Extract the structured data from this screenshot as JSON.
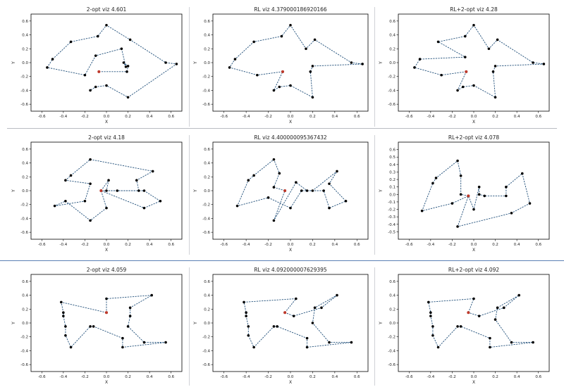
{
  "chart_data": [
    {
      "type": "line",
      "title": "2-opt viz 4.601",
      "xlabel": "X",
      "ylabel": "Y",
      "xlim": [
        -0.7,
        0.7
      ],
      "ylim": [
        -0.7,
        0.7
      ],
      "xticks": [
        -0.6,
        -0.4,
        -0.2,
        0.0,
        0.2,
        0.4,
        0.6
      ],
      "yticks": [
        0.6,
        0.4,
        0.2,
        0.0,
        -0.2,
        -0.4,
        -0.6
      ],
      "start": [
        -0.07,
        -0.13
      ],
      "points": [
        [
          -0.07,
          -0.13
        ],
        [
          0.19,
          -0.13
        ],
        [
          0.2,
          -0.05
        ],
        [
          0.16,
          0.0
        ],
        [
          0.18,
          -0.06
        ],
        [
          0.14,
          0.2
        ],
        [
          -0.1,
          0.1
        ],
        [
          -0.2,
          -0.18
        ],
        [
          -0.55,
          -0.07
        ],
        [
          -0.5,
          0.05
        ],
        [
          -0.33,
          0.3
        ],
        [
          -0.08,
          0.38
        ],
        [
          0.0,
          0.54
        ],
        [
          0.22,
          0.33
        ],
        [
          0.55,
          0.0
        ],
        [
          0.65,
          -0.02
        ],
        [
          0.2,
          -0.5
        ],
        [
          0.0,
          -0.33
        ],
        [
          -0.1,
          -0.35
        ],
        [
          -0.15,
          -0.4
        ]
      ]
    },
    {
      "type": "line",
      "title": "RL viz 4.379000186920166",
      "xlabel": "X",
      "ylabel": "Y",
      "xlim": [
        -0.7,
        0.7
      ],
      "ylim": [
        -0.7,
        0.7
      ],
      "xticks": [
        -0.6,
        -0.4,
        -0.2,
        0.0,
        0.2,
        0.4,
        0.6
      ],
      "yticks": [
        0.6,
        0.4,
        0.2,
        0.0,
        -0.2,
        -0.4,
        -0.6
      ],
      "start": [
        -0.07,
        -0.13
      ],
      "points": [
        [
          -0.07,
          -0.13
        ],
        [
          -0.3,
          -0.18
        ],
        [
          -0.55,
          -0.07
        ],
        [
          -0.5,
          0.05
        ],
        [
          -0.33,
          0.3
        ],
        [
          -0.08,
          0.38
        ],
        [
          0.0,
          0.54
        ],
        [
          0.14,
          0.2
        ],
        [
          0.22,
          0.33
        ],
        [
          0.55,
          0.0
        ],
        [
          0.65,
          -0.02
        ],
        [
          0.2,
          -0.05
        ],
        [
          0.18,
          -0.13
        ],
        [
          0.2,
          -0.5
        ],
        [
          0.0,
          -0.33
        ],
        [
          -0.1,
          -0.35
        ],
        [
          -0.15,
          -0.4
        ],
        [
          -0.07,
          -0.13
        ]
      ]
    },
    {
      "type": "line",
      "title": "RL+2-opt viz 4.28",
      "xlabel": "X",
      "ylabel": "Y",
      "xlim": [
        -0.7,
        0.7
      ],
      "ylim": [
        -0.7,
        0.7
      ],
      "xticks": [
        -0.6,
        -0.4,
        -0.2,
        0.0,
        0.2,
        0.4,
        0.6
      ],
      "yticks": [
        0.6,
        0.4,
        0.2,
        0.0,
        -0.2,
        -0.4,
        -0.6
      ],
      "start": [
        -0.07,
        -0.13
      ],
      "points": [
        [
          -0.07,
          -0.13
        ],
        [
          -0.3,
          -0.18
        ],
        [
          -0.55,
          -0.07
        ],
        [
          -0.5,
          0.05
        ],
        [
          -0.08,
          0.08
        ],
        [
          -0.33,
          0.3
        ],
        [
          -0.08,
          0.38
        ],
        [
          0.0,
          0.54
        ],
        [
          0.14,
          0.2
        ],
        [
          0.22,
          0.33
        ],
        [
          0.55,
          0.0
        ],
        [
          0.65,
          -0.02
        ],
        [
          0.2,
          -0.05
        ],
        [
          0.18,
          -0.13
        ],
        [
          0.2,
          -0.5
        ],
        [
          0.0,
          -0.33
        ],
        [
          -0.1,
          -0.35
        ],
        [
          -0.15,
          -0.4
        ],
        [
          -0.07,
          -0.13
        ]
      ]
    },
    {
      "type": "line",
      "title": "2-opt viz 4.18",
      "xlabel": "X",
      "ylabel": "Y",
      "xlim": [
        -0.7,
        0.7
      ],
      "ylim": [
        -0.7,
        0.7
      ],
      "xticks": [
        -0.6,
        -0.4,
        -0.2,
        0.0,
        0.2,
        0.4,
        0.6
      ],
      "yticks": [
        0.6,
        0.4,
        0.2,
        0.0,
        -0.2,
        -0.4,
        -0.6
      ],
      "start": [
        -0.05,
        0.0
      ],
      "points": [
        [
          -0.05,
          0.0
        ],
        [
          0.02,
          0.15
        ],
        [
          0.0,
          0.0
        ],
        [
          0.1,
          0.0
        ],
        [
          0.3,
          0.0
        ],
        [
          0.28,
          0.15
        ],
        [
          0.43,
          0.28
        ],
        [
          -0.15,
          0.45
        ],
        [
          -0.33,
          0.22
        ],
        [
          -0.38,
          0.15
        ],
        [
          -0.15,
          0.1
        ],
        [
          -0.2,
          -0.15
        ],
        [
          -0.48,
          -0.22
        ],
        [
          -0.38,
          -0.15
        ],
        [
          -0.15,
          -0.43
        ],
        [
          0.0,
          -0.25
        ],
        [
          -0.05,
          0.0
        ],
        [
          0.35,
          -0.25
        ],
        [
          0.5,
          -0.15
        ],
        [
          0.35,
          0.0
        ],
        [
          -0.05,
          0.0
        ]
      ]
    },
    {
      "type": "line",
      "title": "RL viz 4.400000095367432",
      "xlabel": "X",
      "ylabel": "Y",
      "xlim": [
        -0.7,
        0.7
      ],
      "ylim": [
        -0.7,
        0.7
      ],
      "xticks": [
        -0.6,
        -0.4,
        -0.2,
        0.0,
        0.2,
        0.4,
        0.6
      ],
      "yticks": [
        0.6,
        0.4,
        0.2,
        0.0,
        -0.2,
        -0.4,
        -0.6
      ],
      "start": [
        -0.05,
        0.0
      ],
      "points": [
        [
          -0.05,
          0.0
        ],
        [
          -0.15,
          0.05
        ],
        [
          -0.1,
          0.25
        ],
        [
          -0.15,
          0.45
        ],
        [
          -0.33,
          0.22
        ],
        [
          -0.38,
          0.15
        ],
        [
          -0.48,
          -0.22
        ],
        [
          -0.2,
          -0.1
        ],
        [
          0.0,
          -0.25
        ],
        [
          0.1,
          0.0
        ],
        [
          0.2,
          0.0
        ],
        [
          0.42,
          0.28
        ],
        [
          0.35,
          0.1
        ],
        [
          0.5,
          -0.15
        ],
        [
          0.35,
          -0.25
        ],
        [
          0.3,
          0.0
        ],
        [
          0.15,
          0.0
        ],
        [
          0.05,
          0.12
        ],
        [
          -0.15,
          -0.43
        ],
        [
          -0.05,
          0.0
        ]
      ]
    },
    {
      "type": "line",
      "title": "RL+2-opt viz 4.078",
      "xlabel": "X",
      "ylabel": "Y",
      "xlim": [
        -0.7,
        0.7
      ],
      "ylim": [
        -0.6,
        0.7
      ],
      "xticks": [
        -0.6,
        -0.4,
        -0.2,
        0.0,
        0.2,
        0.4,
        0.6
      ],
      "yticks": [
        0.6,
        0.5,
        0.4,
        0.3,
        0.2,
        0.1,
        0.0,
        -0.1,
        -0.2,
        -0.3,
        -0.4,
        -0.5
      ],
      "start": [
        -0.05,
        -0.02
      ],
      "points": [
        [
          -0.05,
          -0.02
        ],
        [
          -0.12,
          0.0
        ],
        [
          -0.12,
          0.25
        ],
        [
          -0.15,
          0.45
        ],
        [
          -0.35,
          0.22
        ],
        [
          -0.38,
          0.15
        ],
        [
          -0.48,
          -0.22
        ],
        [
          -0.2,
          -0.12
        ],
        [
          -0.05,
          -0.02
        ],
        [
          0.0,
          -0.2
        ],
        [
          0.05,
          0.1
        ],
        [
          0.05,
          0.0
        ],
        [
          0.1,
          -0.02
        ],
        [
          0.3,
          -0.02
        ],
        [
          0.3,
          0.1
        ],
        [
          0.45,
          0.28
        ],
        [
          0.52,
          -0.12
        ],
        [
          0.35,
          -0.25
        ],
        [
          -0.15,
          -0.43
        ],
        [
          -0.05,
          -0.02
        ]
      ]
    },
    {
      "type": "line",
      "title": "2-opt viz 4.059",
      "xlabel": "X",
      "ylabel": "Y",
      "xlim": [
        -0.7,
        0.7
      ],
      "ylim": [
        -0.7,
        0.7
      ],
      "xticks": [
        -0.6,
        -0.4,
        -0.2,
        0.0,
        0.2,
        0.4,
        0.6
      ],
      "yticks": [
        0.6,
        0.4,
        0.2,
        0.0,
        -0.2,
        -0.4,
        -0.6
      ],
      "start": [
        0.0,
        0.15
      ],
      "points": [
        [
          0.0,
          0.15
        ],
        [
          -0.42,
          0.3
        ],
        [
          -0.4,
          0.15
        ],
        [
          -0.4,
          0.1
        ],
        [
          -0.38,
          -0.05
        ],
        [
          -0.38,
          -0.18
        ],
        [
          -0.33,
          -0.35
        ],
        [
          -0.15,
          -0.05
        ],
        [
          -0.12,
          -0.05
        ],
        [
          0.15,
          -0.22
        ],
        [
          0.15,
          -0.35
        ],
        [
          0.55,
          -0.28
        ],
        [
          0.35,
          -0.28
        ],
        [
          0.2,
          -0.05
        ],
        [
          0.22,
          0.1
        ],
        [
          0.22,
          0.22
        ],
        [
          0.42,
          0.4
        ],
        [
          0.0,
          0.35
        ],
        [
          0.0,
          0.15
        ]
      ]
    },
    {
      "type": "line",
      "title": "RL viz 4.092000007629395",
      "xlabel": "X",
      "ylabel": "Y",
      "xlim": [
        -0.7,
        0.7
      ],
      "ylim": [
        -0.7,
        0.7
      ],
      "xticks": [
        -0.6,
        -0.4,
        -0.2,
        0.0,
        0.2,
        0.4,
        0.6
      ],
      "yticks": [
        0.6,
        0.4,
        0.2,
        0.0,
        -0.2,
        -0.4,
        -0.6
      ],
      "start": [
        -0.05,
        0.15
      ],
      "points": [
        [
          -0.05,
          0.15
        ],
        [
          0.05,
          0.35
        ],
        [
          -0.42,
          0.3
        ],
        [
          -0.4,
          0.15
        ],
        [
          -0.4,
          0.1
        ],
        [
          -0.38,
          -0.05
        ],
        [
          -0.38,
          -0.18
        ],
        [
          -0.33,
          -0.35
        ],
        [
          -0.15,
          -0.05
        ],
        [
          -0.12,
          -0.05
        ],
        [
          0.15,
          -0.22
        ],
        [
          0.15,
          -0.35
        ],
        [
          0.55,
          -0.28
        ],
        [
          0.35,
          -0.28
        ],
        [
          0.2,
          0.0
        ],
        [
          0.22,
          0.22
        ],
        [
          0.42,
          0.4
        ],
        [
          0.28,
          0.22
        ],
        [
          0.03,
          0.1
        ],
        [
          -0.05,
          0.15
        ]
      ]
    },
    {
      "type": "line",
      "title": "RL+2-opt viz 4.092",
      "xlabel": "X",
      "ylabel": "Y",
      "xlim": [
        -0.7,
        0.7
      ],
      "ylim": [
        -0.7,
        0.7
      ],
      "xticks": [
        -0.6,
        -0.4,
        -0.2,
        0.0,
        0.2,
        0.4,
        0.6
      ],
      "yticks": [
        0.6,
        0.4,
        0.2,
        0.0,
        -0.2,
        -0.4,
        -0.6
      ],
      "start": [
        -0.05,
        0.15
      ],
      "points": [
        [
          -0.05,
          0.15
        ],
        [
          0.0,
          0.35
        ],
        [
          -0.42,
          0.3
        ],
        [
          -0.4,
          0.15
        ],
        [
          -0.4,
          0.1
        ],
        [
          -0.38,
          -0.05
        ],
        [
          -0.38,
          -0.18
        ],
        [
          -0.33,
          -0.35
        ],
        [
          -0.15,
          -0.05
        ],
        [
          -0.12,
          -0.05
        ],
        [
          0.15,
          -0.22
        ],
        [
          0.15,
          -0.35
        ],
        [
          0.55,
          -0.28
        ],
        [
          0.35,
          -0.28
        ],
        [
          0.2,
          0.05
        ],
        [
          0.22,
          0.22
        ],
        [
          0.42,
          0.4
        ],
        [
          0.28,
          0.22
        ],
        [
          0.05,
          0.1
        ],
        [
          -0.05,
          0.15
        ]
      ]
    }
  ],
  "colors": {
    "path": "#1f4e79",
    "point": "#000000",
    "start": "#c0392b",
    "frame": "#000000"
  }
}
